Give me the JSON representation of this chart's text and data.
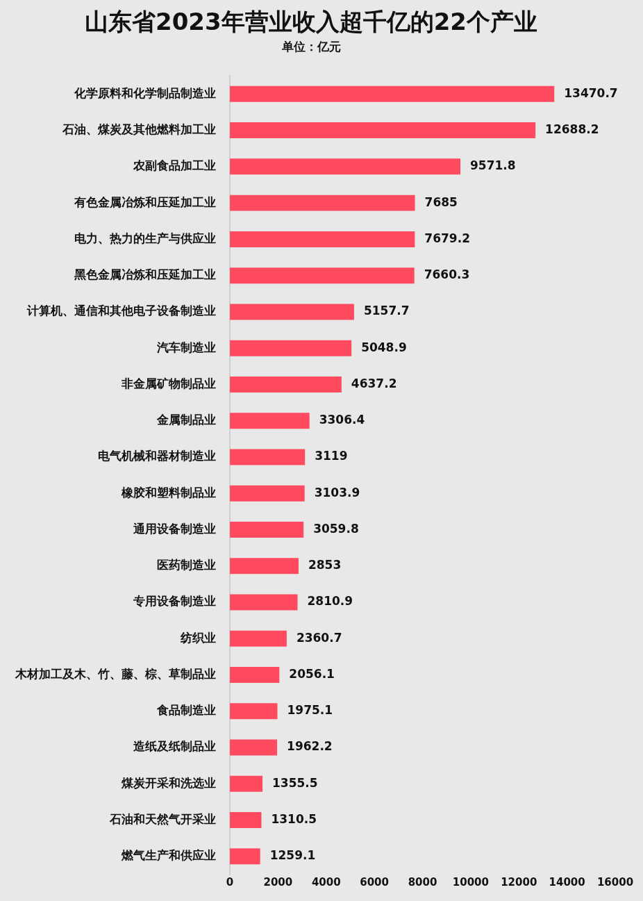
{
  "chart_data": {
    "type": "bar",
    "orientation": "horizontal",
    "title": "山东省2023年营业收入超千亿的22个产业",
    "subtitle": "单位：亿元",
    "categories": [
      "化学原料和化学制品制造业",
      "石油、煤炭及其他燃料加工业",
      "农副食品加工业",
      "有色金属冶炼和压延加工业",
      "电力、热力的生产与供应业",
      "黑色金属冶炼和压延加工业",
      "计算机、通信和其他电子设备制造业",
      "汽车制造业",
      "非金属矿物制品业",
      "金属制品业",
      "电气机械和器材制造业",
      "橡胶和塑料制品业",
      "通用设备制造业",
      "医药制造业",
      "专用设备制造业",
      "纺织业",
      "木材加工及木、竹、藤、棕、草制品业",
      "食品制造业",
      "造纸及纸制品业",
      "煤炭开采和洗选业",
      "石油和天然气开采业",
      "燃气生产和供应业"
    ],
    "values": [
      13470.7,
      12688.2,
      9571.8,
      7685,
      7679.2,
      7660.3,
      5157.7,
      5048.9,
      4637.2,
      3306.4,
      3119,
      3103.9,
      3059.8,
      2853,
      2810.9,
      2360.7,
      2056.1,
      1975.1,
      1962.2,
      1355.5,
      1310.5,
      1259.1
    ],
    "color": "#ff4a5f",
    "xlim": [
      0,
      16000
    ],
    "xticks": [
      0,
      2000,
      4000,
      6000,
      8000,
      10000,
      12000,
      14000,
      16000
    ],
    "data_labels": true,
    "legend": false
  }
}
